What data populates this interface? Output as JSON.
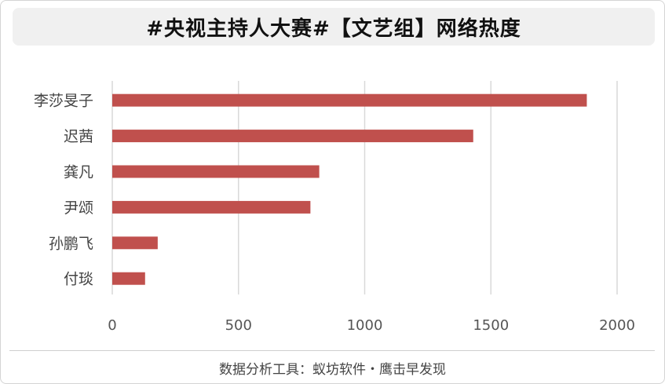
{
  "footer": {
    "source": "数据分析工具：蚁坊软件・鹰击早发现"
  },
  "chart_data": {
    "type": "bar",
    "orientation": "horizontal",
    "title": "#央视主持人大赛#【文艺组】网络热度",
    "categories": [
      "李莎旻子",
      "迟茜",
      "龚凡",
      "尹颂",
      "孙鹏飞",
      "付琰"
    ],
    "values": [
      1880,
      1430,
      820,
      785,
      180,
      130
    ],
    "xlim": [
      0,
      2000
    ],
    "xticks": [
      0,
      500,
      1000,
      1500,
      2000
    ],
    "xlabel": "",
    "ylabel": "",
    "grid": true,
    "legend": "none",
    "bar_color": "#c0504d"
  }
}
